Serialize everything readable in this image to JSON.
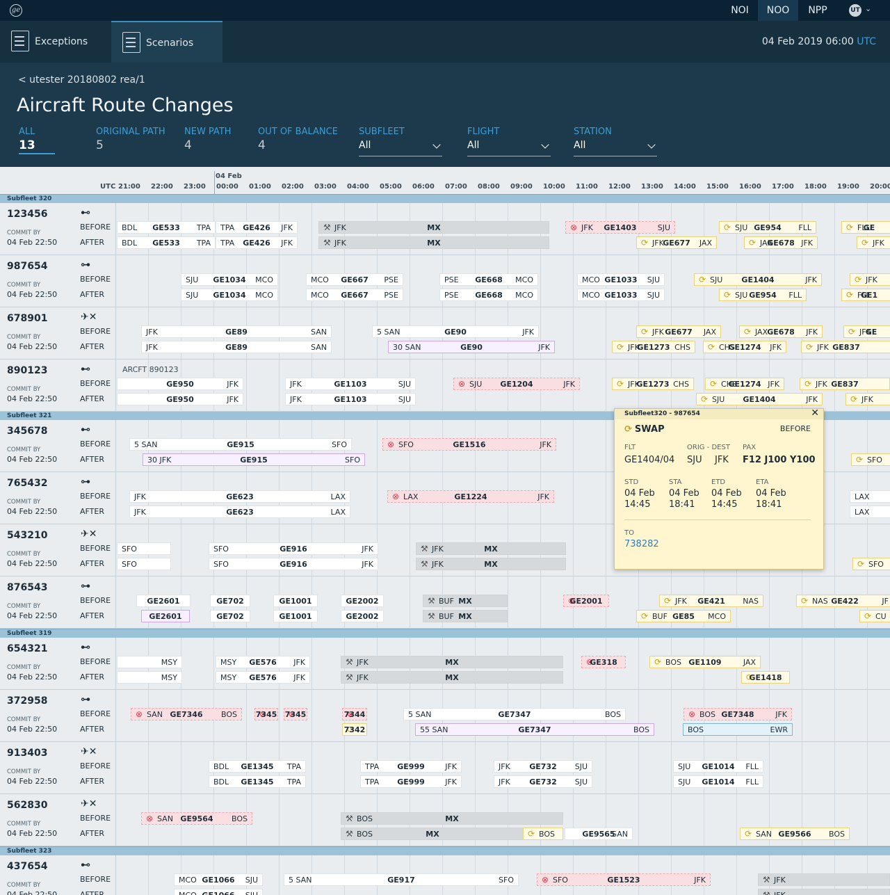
{
  "topbar": {
    "nav": [
      "NOI",
      "NOO",
      "NPP"
    ],
    "active": "NOO",
    "user": "UT"
  },
  "appbar": {
    "tabs": [
      "Exceptions",
      "Scenarios"
    ],
    "date": "04 Feb 2019",
    "time": "06:00",
    "tz": "UTC"
  },
  "header": {
    "breadcrumb": "< utester 20180802 rea/1",
    "title": "Aircraft Route Changes",
    "stats": [
      {
        "label": "ALL",
        "value": "13"
      },
      {
        "label": "ORIGINAL PATH",
        "value": "5"
      },
      {
        "label": "NEW PATH",
        "value": "4"
      },
      {
        "label": "OUT OF BALANCE",
        "value": "4"
      }
    ],
    "dropdowns": [
      {
        "label": "SUBFLEET",
        "value": "All"
      },
      {
        "label": "FLIGHT",
        "value": "All"
      },
      {
        "label": "STATION",
        "value": "All"
      }
    ]
  },
  "timeline": {
    "tz": "UTC",
    "day": "04 Feb",
    "hours": [
      "21:00",
      "22:00",
      "23:00",
      "00:00",
      "01:00",
      "02:00",
      "03:00",
      "04:00",
      "05:00",
      "06:00",
      "07:00",
      "08:00",
      "09:00",
      "10:00",
      "11:00",
      "12:00",
      "13:00",
      "14:00",
      "15:00",
      "16:00",
      "17:00",
      "18:00",
      "19:00",
      "20:00"
    ]
  },
  "labels": {
    "commit": "COMMIT BY",
    "before": "BEFORE",
    "after": "AFTER"
  },
  "subfleets": [
    "Subfleet 320",
    "Subfleet 321",
    "Subfleet 319",
    "Subfleet 323"
  ],
  "rows": [
    {
      "ac": "123456",
      "icon": "⊷",
      "commit": "04 Feb 22:50",
      "note": ""
    },
    {
      "ac": "987654",
      "icon": "⊶",
      "commit": "04 Feb 22:50",
      "note": ""
    },
    {
      "ac": "678901",
      "icon": "✈✕",
      "commit": "04 Feb 22:50",
      "note": ""
    },
    {
      "ac": "890123",
      "icon": "⊷",
      "commit": "04 Feb 22:50",
      "note": "ARCFT 890123"
    },
    {
      "ac": "345678",
      "icon": "⊷",
      "commit": "04 Feb 22:50",
      "note": ""
    },
    {
      "ac": "765432",
      "icon": "⊶",
      "commit": "04 Feb 22:50",
      "note": ""
    },
    {
      "ac": "543210",
      "icon": "✈✕",
      "commit": "04 Feb 22:50",
      "note": ""
    },
    {
      "ac": "876543",
      "icon": "⊶",
      "commit": "04 Feb 22:50",
      "note": ""
    },
    {
      "ac": "654321",
      "icon": "⊷",
      "commit": "04 Feb 22:50",
      "note": ""
    },
    {
      "ac": "372958",
      "icon": "⊶",
      "commit": "04 Feb 22:50",
      "note": ""
    },
    {
      "ac": "913403",
      "icon": "✈✕",
      "commit": "04 Feb 22:50",
      "note": ""
    },
    {
      "ac": "562830",
      "icon": "✈✕",
      "commit": "04 Feb 22:50",
      "note": ""
    },
    {
      "ac": "437654",
      "icon": "⊷",
      "commit": "04 Feb 22:50",
      "note": ""
    }
  ],
  "flights": [
    [
      [
        "BDL",
        "GE533",
        "TPA"
      ],
      [
        "TPA",
        "GE426",
        "JFK"
      ],
      [
        "JFK",
        "MX",
        ""
      ],
      [
        "JFK",
        "GE1403",
        "SJU"
      ],
      [
        "SJU",
        "GE954",
        "FLL"
      ],
      [
        "FLL",
        "GE",
        ""
      ],
      [
        "BDL",
        "GE533",
        "TPA"
      ],
      [
        "TPA",
        "GE426",
        "JFK"
      ],
      [
        "JFK",
        "MX",
        ""
      ],
      [
        "JFK",
        "GE677",
        "JAX"
      ],
      [
        "JAX",
        "GE678",
        "JFK"
      ],
      [
        "JFK",
        "",
        ""
      ]
    ],
    [
      [
        "SJU",
        "GE1034",
        "MCO"
      ],
      [
        "MCO",
        "GE667",
        "PSE"
      ],
      [
        "PSE",
        "GE668",
        "MCO"
      ],
      [
        "MCO",
        "GE1033",
        "SJU"
      ],
      [
        "SJU",
        "GE1404",
        "JFK"
      ],
      [
        "JFK",
        "",
        ""
      ],
      [
        "SJU",
        "GE1034",
        "MCO"
      ],
      [
        "MCO",
        "GE667",
        "PSE"
      ],
      [
        "PSE",
        "GE668",
        "MCO"
      ],
      [
        "MCO",
        "GE1033",
        "SJU"
      ],
      [
        "SJU",
        "GE954",
        "FLL"
      ],
      [
        "FLL",
        "GE1",
        ""
      ]
    ],
    [
      [
        "JFK",
        "GE89",
        "SAN"
      ],
      [
        "5 SAN",
        "GE90",
        "JFK"
      ],
      [
        "JFK",
        "GE677",
        "JAX"
      ],
      [
        "JAX",
        "GE678",
        "JFK"
      ],
      [
        "JFK",
        "GE",
        ""
      ],
      [
        "JFK",
        "GE89",
        "SAN"
      ],
      [
        "30 SAN",
        "GE90",
        "JFK"
      ],
      [
        "JFK",
        "GE1273",
        "CHS"
      ],
      [
        "CHS",
        "GE1274",
        "JFK"
      ],
      [
        "JFK",
        "GE837",
        ""
      ]
    ],
    [
      [
        "",
        "GE950",
        "JFK"
      ],
      [
        "JFK",
        "GE1103",
        "SJU"
      ],
      [
        "SJU",
        "GE1204",
        "JFK"
      ],
      [
        "JFK",
        "GE1273",
        "CHS"
      ],
      [
        "CHS",
        "GE1274",
        "JFK"
      ],
      [
        "JFK",
        "GE837",
        ""
      ],
      [
        "",
        "GE950",
        "JFK"
      ],
      [
        "JFK",
        "GE1103",
        "SJU"
      ],
      [
        "SJU",
        "GE1404",
        "JFK"
      ],
      [
        "JFK",
        "",
        ""
      ]
    ],
    [
      [
        "5 SAN",
        "GE915",
        "SFO"
      ],
      [
        "SFO",
        "GE1516",
        "JFK"
      ],
      [
        "30 JFK",
        "GE915",
        "SFO"
      ],
      [
        "SFO",
        "",
        ""
      ]
    ],
    [
      [
        "JFK",
        "GE623",
        "LAX"
      ],
      [
        "LAX",
        "GE1224",
        "JFK"
      ],
      [
        "LAX",
        "",
        ""
      ],
      [
        "JFK",
        "GE623",
        "LAX"
      ],
      [
        "LAX",
        "",
        ""
      ]
    ],
    [
      [
        "SFO",
        "",
        ""
      ],
      [
        "SFO",
        "GE916",
        "JFK"
      ],
      [
        "JFK",
        "MX",
        ""
      ],
      [
        "SFO",
        "",
        ""
      ],
      [
        "SFO",
        "GE916",
        "JFK"
      ],
      [
        "JFK",
        "MX",
        ""
      ],
      [
        "SFO",
        "",
        ""
      ]
    ],
    [
      [
        "",
        "GE2601",
        ""
      ],
      [
        "",
        "GE702",
        ""
      ],
      [
        "",
        "GE1001",
        ""
      ],
      [
        "",
        "GE2002",
        ""
      ],
      [
        "BUF",
        "MX",
        ""
      ],
      [
        "",
        "GE2001",
        ""
      ],
      [
        "JFK",
        "GE421",
        "NAS"
      ],
      [
        "NAS",
        "GE422",
        "JF"
      ],
      [
        "",
        "GE2601",
        ""
      ],
      [
        "",
        "GE702",
        ""
      ],
      [
        "",
        "GE1001",
        ""
      ],
      [
        "",
        "GE2002",
        ""
      ],
      [
        "BUF",
        "MX",
        ""
      ],
      [
        "BUF",
        "GE85",
        "MCO"
      ],
      [
        "CU",
        "",
        ""
      ]
    ],
    [
      [
        "",
        "",
        "MSY"
      ],
      [
        "MSY",
        "GE576",
        "JFK"
      ],
      [
        "JFK",
        "MX",
        ""
      ],
      [
        "",
        "GE318",
        ""
      ],
      [
        "BOS",
        "GE1109",
        "JAX"
      ],
      [
        "",
        "",
        "MSY"
      ],
      [
        "MSY",
        "GE576",
        "JFK"
      ],
      [
        "JFK",
        "MX",
        ""
      ],
      [
        "",
        "GE1418",
        ""
      ]
    ],
    [
      [
        "SAN",
        "GE7346",
        "BOS"
      ],
      [
        "",
        "7345",
        ""
      ],
      [
        "",
        "7345",
        ""
      ],
      [
        "",
        "7344",
        ""
      ],
      [
        "5 SAN",
        "GE7347",
        "BOS"
      ],
      [
        "BOS",
        "GE7348",
        "JFK"
      ],
      [
        "",
        "7342",
        ""
      ],
      [
        "55 SAN",
        "GE7347",
        "BOS"
      ],
      [
        "BOS",
        "",
        "EWR"
      ]
    ],
    [
      [
        "BDL",
        "GE1345",
        "TPA"
      ],
      [
        "TPA",
        "GE999",
        "JFK"
      ],
      [
        "JFK",
        "GE732",
        "SJU"
      ],
      [
        "SJU",
        "GE1014",
        "FLL"
      ],
      [
        "BDL",
        "GE1345",
        "TPA"
      ],
      [
        "TPA",
        "GE999",
        "JFK"
      ],
      [
        "JFK",
        "GE732",
        "SJU"
      ],
      [
        "SJU",
        "GE1014",
        "FLL"
      ]
    ],
    [
      [
        "SAN",
        "GE9564",
        "BOS"
      ],
      [
        "BOS",
        "MX",
        ""
      ],
      [
        "BOS",
        "MX",
        ""
      ],
      [
        "BOS",
        "",
        ""
      ],
      [
        "",
        "GE9565",
        "SAN"
      ],
      [
        "SAN",
        "GE9566",
        "BOS"
      ]
    ],
    [
      [
        "MCO",
        "GE1066",
        "SJU"
      ],
      [
        "5 SAN",
        "GE917",
        "SFO"
      ],
      [
        "SFO",
        "GE1523",
        "JFK"
      ],
      [
        "JFK",
        "",
        ""
      ],
      [
        "MCO",
        "GE1066",
        "SJU"
      ],
      [
        "JFK",
        "",
        ""
      ]
    ]
  ],
  "popup": {
    "header": "Subfleet320 - 987654",
    "type": "SWAP",
    "mode": "BEFORE",
    "flt_label": "FLT",
    "flt": "GE1404/04",
    "od_label": "ORIG -  DEST",
    "orig": "SJU",
    "dest": "JFK",
    "pax_label": "PAX",
    "pax": "F12 J100 Y100",
    "std_label": "STD",
    "std": "04 Feb\n14:45",
    "sta_label": "STA",
    "sta": "04 Feb\n18:41",
    "etd_label": "ETD",
    "etd": "04 Feb\n14:45",
    "eta_label": "ETA",
    "eta": "04 Feb\n18:41",
    "to_label": "TO",
    "to": "738282"
  },
  "icons": {
    "cancel": "circle-x-icon",
    "swap": "swap-arrow-icon",
    "maint": "wrench-icon",
    "delay": "clock-icon"
  }
}
